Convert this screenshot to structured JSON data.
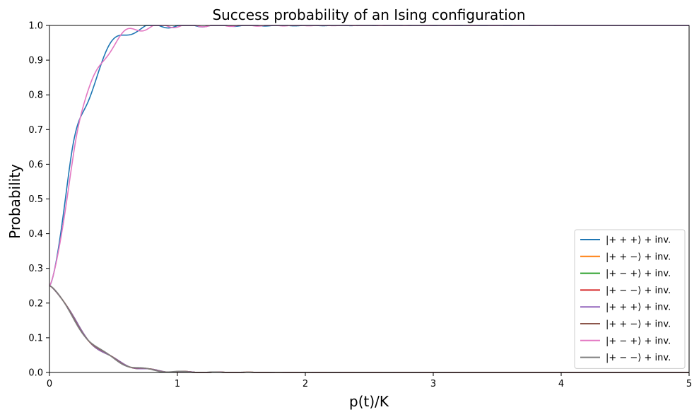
{
  "chart_data": {
    "type": "line",
    "title": "Success probability of an Ising configuration",
    "xlabel": "p(t)/K",
    "ylabel": "Probability",
    "xlim": [
      0,
      5
    ],
    "ylim": [
      0,
      1
    ],
    "xticks": [
      0,
      1,
      2,
      3,
      4,
      5
    ],
    "yticks": [
      0.0,
      0.1,
      0.2,
      0.3,
      0.4,
      0.5,
      0.6,
      0.7,
      0.8,
      0.9,
      1.0
    ],
    "ytick_labels": [
      "0.0",
      "0.1",
      "0.2",
      "0.3",
      "0.4",
      "0.5",
      "0.6",
      "0.7",
      "0.8",
      "0.9",
      "1.0"
    ],
    "grid": false,
    "legend_position": "lower-right",
    "series": [
      {
        "name": "|+ + +⟩ + inv.",
        "color": "#1f77b4",
        "group": "success",
        "phase": 0.0,
        "osc": 1.0
      },
      {
        "name": "|+ + −⟩ + inv.",
        "color": "#ff7f0e",
        "group": "fail",
        "phase": 0.0,
        "osc": 1.0
      },
      {
        "name": "|+ − +⟩ + inv.",
        "color": "#2ca02c",
        "group": "fail",
        "phase": 0.0,
        "osc": 1.0
      },
      {
        "name": "|+ − −⟩ + inv.",
        "color": "#d62728",
        "group": "fail",
        "phase": 0.3,
        "osc": 1.0
      },
      {
        "name": "|+ + +⟩ + inv.",
        "color": "#9467bd",
        "group": "fail",
        "phase": 0.0,
        "osc": 1.0
      },
      {
        "name": "|+ + −⟩ + inv.",
        "color": "#8c564b",
        "group": "fail",
        "phase": 0.6,
        "osc": 1.0
      },
      {
        "name": "|+ − +⟩ + inv.",
        "color": "#e377c2",
        "group": "success",
        "phase": 2.6,
        "osc": 1.15
      },
      {
        "name": "|+ − −⟩ + inv.",
        "color": "#7f7f7f",
        "group": "fail",
        "phase": 0.9,
        "osc": 1.0
      }
    ]
  }
}
